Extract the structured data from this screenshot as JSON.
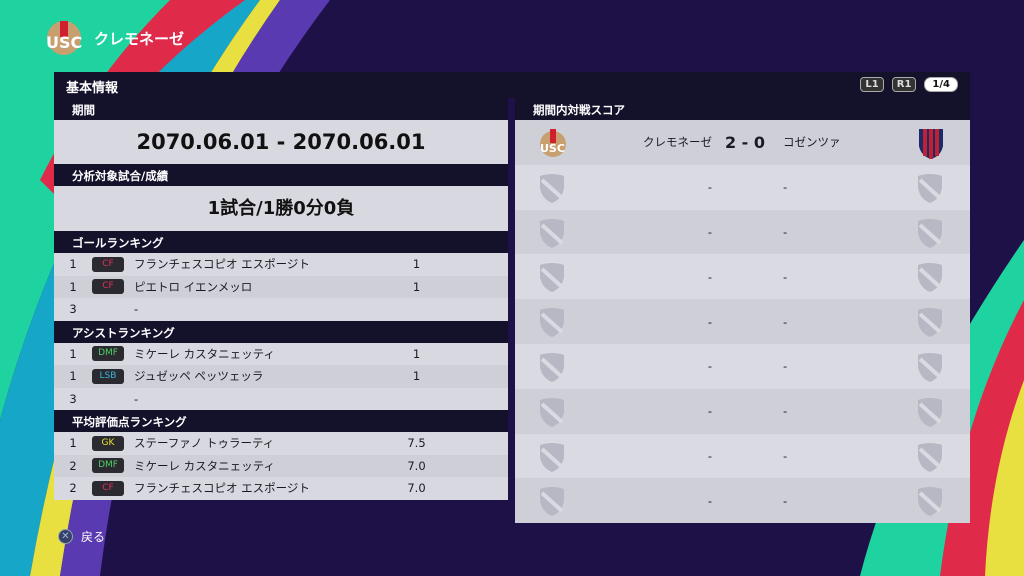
{
  "club": {
    "name": "クレモネーゼ"
  },
  "header": {
    "title": "基本情報",
    "l1": "L1",
    "r1": "R1",
    "page": "1/4"
  },
  "period": {
    "label": "期間",
    "value": "2070.06.01 - 2070.06.01"
  },
  "record": {
    "label": "分析対象試合/成績",
    "value": "1試合/1勝0分0負"
  },
  "rankings": [
    {
      "title": "ゴールランキング",
      "rows": [
        {
          "rank": "1",
          "pos": "CF",
          "pos_color": "#e0305a",
          "name": "フランチェスコピオ エスポージト",
          "value": "1"
        },
        {
          "rank": "1",
          "pos": "CF",
          "pos_color": "#e0305a",
          "name": "ピエトロ イエンメッロ",
          "value": "1"
        },
        {
          "rank": "3",
          "pos": "",
          "pos_color": "",
          "name": "-",
          "value": ""
        }
      ]
    },
    {
      "title": "アシストランキング",
      "rows": [
        {
          "rank": "1",
          "pos": "DMF",
          "pos_color": "#4cd060",
          "name": "ミケーレ カスタニェッティ",
          "value": "1"
        },
        {
          "rank": "1",
          "pos": "LSB",
          "pos_color": "#38b8e0",
          "name": "ジュゼッペ ペッツェッラ",
          "value": "1"
        },
        {
          "rank": "3",
          "pos": "",
          "pos_color": "",
          "name": "-",
          "value": ""
        }
      ]
    },
    {
      "title": "平均評価点ランキング",
      "rows": [
        {
          "rank": "1",
          "pos": "GK",
          "pos_color": "#e8e030",
          "name": "ステーファノ トゥラーティ",
          "value": "7.5"
        },
        {
          "rank": "2",
          "pos": "DMF",
          "pos_color": "#4cd060",
          "name": "ミケーレ カスタニェッティ",
          "value": "7.0"
        },
        {
          "rank": "2",
          "pos": "CF",
          "pos_color": "#e0305a",
          "name": "フランチェスコピオ エスポージト",
          "value": "7.0"
        }
      ]
    }
  ],
  "matches": {
    "label": "期間内対戦スコア",
    "rows": [
      {
        "home": "クレモネーゼ",
        "score": "2 - 0",
        "away": "コゼンツァ",
        "home_icon": "cremonese-crest",
        "away_icon": "cosenza-crest"
      },
      {
        "home": "-",
        "score": "",
        "away": "-"
      },
      {
        "home": "-",
        "score": "",
        "away": "-"
      },
      {
        "home": "-",
        "score": "",
        "away": "-"
      },
      {
        "home": "-",
        "score": "",
        "away": "-"
      },
      {
        "home": "-",
        "score": "",
        "away": "-"
      },
      {
        "home": "-",
        "score": "",
        "away": "-"
      },
      {
        "home": "-",
        "score": "",
        "away": "-"
      },
      {
        "home": "-",
        "score": "",
        "away": "-"
      }
    ]
  },
  "footer": {
    "back_label": "戻る",
    "back_icon": "cross-button-icon"
  }
}
